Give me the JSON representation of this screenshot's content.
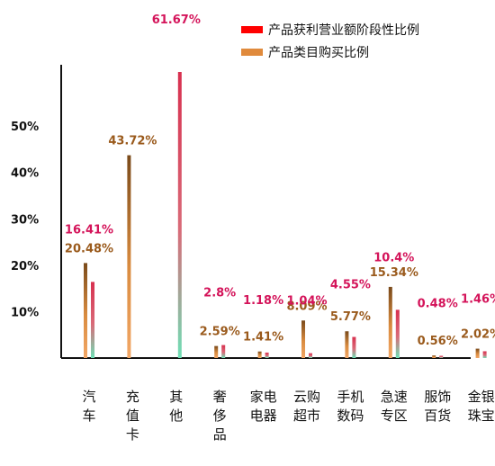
{
  "chart_data": {
    "type": "bar",
    "categories": [
      "汽车",
      "充值卡",
      "其他",
      "奢侈品",
      "家电电器",
      "云购超市",
      "手机数码",
      "急速专区",
      "服饰百货",
      "金银珠宝"
    ],
    "category_lines": [
      [
        "汽",
        "车"
      ],
      [
        "充",
        "值",
        "卡"
      ],
      [
        "其",
        "他"
      ],
      [
        "奢",
        "侈",
        "品"
      ],
      [
        "家电",
        "电器"
      ],
      [
        "云购",
        "超市"
      ],
      [
        "手机",
        "数码"
      ],
      [
        "急速",
        "专区"
      ],
      [
        "服饰",
        "百货"
      ],
      [
        "金银",
        "珠宝"
      ]
    ],
    "series": [
      {
        "name": "产品类目购买比例",
        "values": [
          20.48,
          43.72,
          0,
          2.59,
          1.41,
          8.09,
          5.77,
          15.34,
          0.56,
          2.02
        ],
        "labels": [
          "20.48%",
          "43.72%",
          "",
          "2.59%",
          "1.41%",
          "8.09%",
          "5.77%",
          "15.34%",
          "0.56%",
          "2.02%"
        ],
        "color": "#c87a2e"
      },
      {
        "name": "产品获利营业额阶段性比例",
        "values": [
          16.41,
          0,
          61.67,
          2.8,
          1.18,
          1.04,
          4.55,
          10.4,
          0.48,
          1.46
        ],
        "labels": [
          "16.41%",
          "",
          "61.67%",
          "2.8%",
          "1.18%",
          "1.04%",
          "4.55%",
          "10.4%",
          "0.48%",
          "1.46%"
        ],
        "color": "#d4145a"
      }
    ],
    "legend": [
      {
        "name": "产品获利营业额阶段性比例",
        "color": "#ff0000"
      },
      {
        "name": "产品类目购买比例",
        "color": "#e08a3c"
      }
    ],
    "yticks": [
      "10%",
      "20%",
      "30%",
      "40%",
      "50%"
    ],
    "ytick_values": [
      10,
      20,
      30,
      40,
      50
    ],
    "ylim": [
      0,
      61.67
    ],
    "grid": false,
    "legend_position": "top-right",
    "title": "",
    "xlabel": "",
    "ylabel": ""
  }
}
